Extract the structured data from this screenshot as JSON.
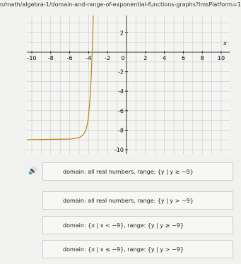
{
  "url": "n/math/algebra-1/domain-and-range-of-exponential-functions-graphs?lmsPlatform=1",
  "graph": {
    "x_label": "x",
    "xticks": [
      -10,
      -8,
      -6,
      -4,
      -2,
      0,
      2,
      4,
      6,
      8,
      10
    ],
    "yticks": [
      2,
      -2,
      -4,
      -6,
      -8,
      -10
    ]
  },
  "choices": [
    "domain: all real numbers, range: {y | y ≥ −9}",
    "domain: all real numbers, range: {y | y > −9}",
    "domain: {x | x < −9}, range: {y | y ≥ −9}",
    "domain: {x | x ≤ −9}, range: {y | y > −9}"
  ]
}
